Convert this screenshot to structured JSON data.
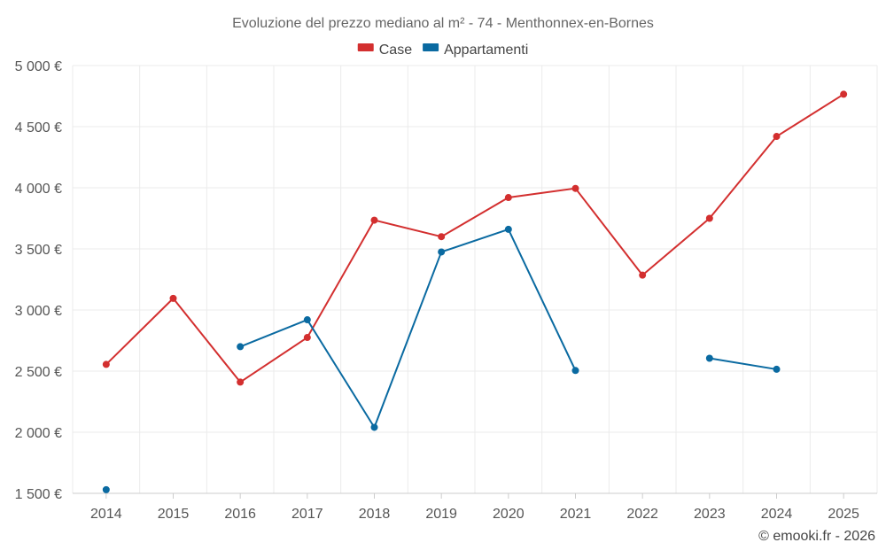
{
  "chart_data": {
    "type": "line",
    "title": "Evoluzione del prezzo mediano al m² - 74 - Menthonnex-en-Bornes",
    "xlabel": "",
    "ylabel": "",
    "ylim": [
      1500,
      5000
    ],
    "yticks": [
      1500,
      2000,
      2500,
      3000,
      3500,
      4000,
      4500,
      5000
    ],
    "ytick_labels": [
      "1 500 €",
      "2 000 €",
      "2 500 €",
      "3 000 €",
      "3 500 €",
      "4 000 €",
      "4 500 €",
      "5 000 €"
    ],
    "categories": [
      "2014",
      "2015",
      "2016",
      "2017",
      "2018",
      "2019",
      "2020",
      "2021",
      "2022",
      "2023",
      "2024",
      "2025"
    ],
    "legend_position": "top-center",
    "series": [
      {
        "name": "Case",
        "color": "#d32f2f",
        "values": [
          2555,
          3095,
          2410,
          2775,
          3735,
          3600,
          3920,
          3995,
          3285,
          3750,
          4420,
          4765
        ]
      },
      {
        "name": "Appartamenti",
        "color": "#0a6aa1",
        "values": [
          1530,
          null,
          2700,
          2920,
          2040,
          3475,
          3660,
          2505,
          null,
          2605,
          2515,
          null
        ]
      }
    ]
  },
  "credit": "© emooki.fr - 2026"
}
